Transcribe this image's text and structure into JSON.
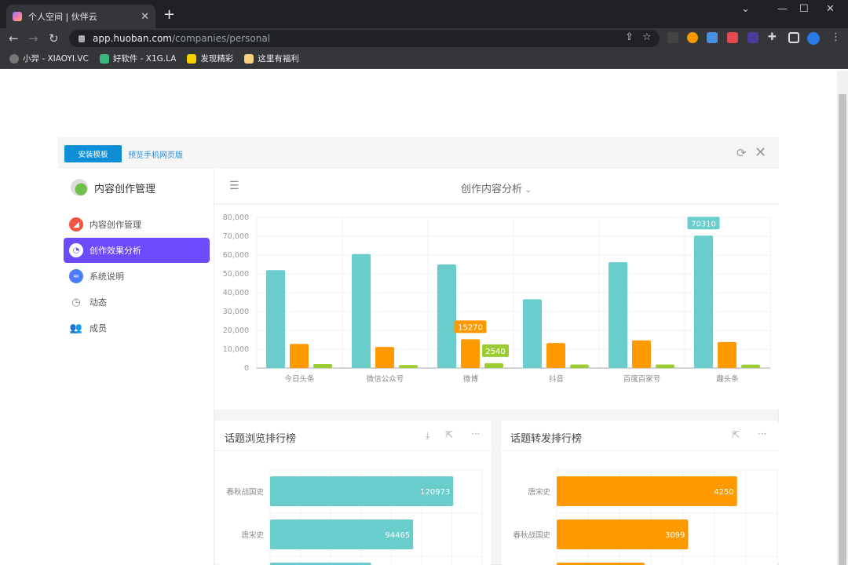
{
  "browser": {
    "tab_title": "个人空间 | 伙伴云",
    "url_host": "app.huoban.com",
    "url_path": "/companies/personal",
    "bookmarks": [
      {
        "label": "小羿 - XIAOYI.VC",
        "color": "#777"
      },
      {
        "label": "好软件 - X1G.LA",
        "color": "#3bb77e"
      },
      {
        "label": "发现精彩",
        "color": "#f5d000"
      },
      {
        "label": "这里有福利",
        "color": "#f6d27a"
      }
    ]
  },
  "panel": {
    "install_label": "安装模板",
    "preview_label": "预览手机网页版"
  },
  "sidebar": {
    "app_name": "内容创作管理",
    "items": [
      {
        "label": "内容创作管理",
        "icon": "chart-area-icon",
        "color": "#f1553f",
        "active": false
      },
      {
        "label": "创作效果分析",
        "icon": "pie-chart-icon",
        "color": "#ffffff",
        "active": true
      },
      {
        "label": "系统说明",
        "icon": "line-chart-icon",
        "color": "#4a7cf6",
        "active": false
      },
      {
        "label": "动态",
        "icon": "clock-icon",
        "color": "#888",
        "active": false
      },
      {
        "label": "成员",
        "icon": "users-icon",
        "color": "#888",
        "active": false
      }
    ]
  },
  "main": {
    "title": "创作内容分析"
  },
  "colors": {
    "teal": "#68cdcb",
    "orange": "#ff9900",
    "green": "#9bcd33",
    "accent": "#6c4bfc"
  },
  "chart_data": [
    {
      "type": "bar",
      "categories": [
        "今日头条",
        "微信公众号",
        "微博",
        "抖音",
        "百度百家号",
        "趣头条"
      ],
      "ylim": [
        0,
        80000
      ],
      "yticks": [
        "0",
        "10,000",
        "20,000",
        "30,000",
        "40,000",
        "50,000",
        "60,000",
        "70,000",
        "80,000"
      ],
      "grid": true,
      "series": [
        {
          "values": [
            52000,
            60500,
            55000,
            36500,
            56200,
            70310
          ],
          "color": "#68cdcb"
        },
        {
          "values": [
            12800,
            11200,
            15270,
            13300,
            14700,
            13800
          ],
          "color": "#ff9900"
        },
        {
          "values": [
            2100,
            1600,
            2540,
            1900,
            1900,
            1800
          ],
          "color": "#9bcd33"
        }
      ],
      "data_labels": [
        {
          "series": 0,
          "index": 5,
          "text": "70310"
        },
        {
          "series": 1,
          "index": 2,
          "text": "15270"
        },
        {
          "series": 2,
          "index": 2,
          "text": "2540"
        }
      ]
    },
    {
      "type": "bar",
      "orientation": "horizontal",
      "title": "话题浏览排行榜",
      "categories": [
        "春秋战国史",
        "唐宋史",
        ""
      ],
      "values": [
        120973,
        94465,
        66700
      ],
      "labels": [
        "120973",
        "94465",
        ""
      ],
      "xlim": [
        0,
        140000
      ],
      "color": "#68cdcb"
    },
    {
      "type": "bar",
      "orientation": "horizontal",
      "title": "话题转发排行榜",
      "categories": [
        "唐宋史",
        "春秋战国史",
        ""
      ],
      "values": [
        4250,
        3099,
        2070
      ],
      "labels": [
        "4250",
        "3099",
        ""
      ],
      "xlim": [
        0,
        5200
      ],
      "color": "#ff9900"
    }
  ]
}
